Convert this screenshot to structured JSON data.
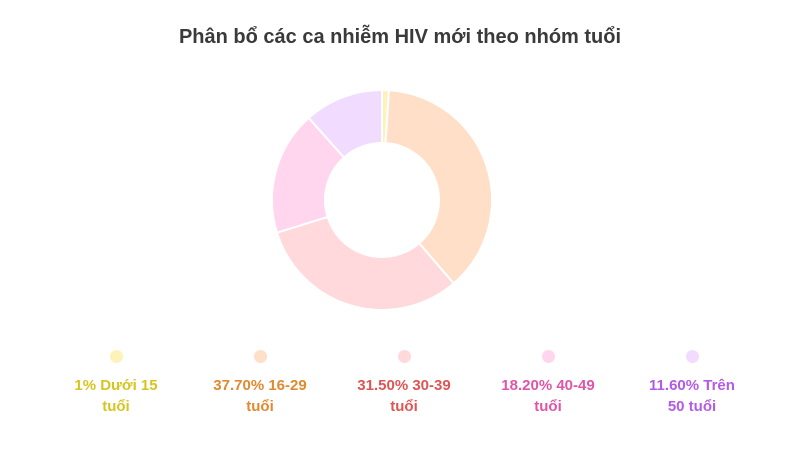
{
  "chart_data": {
    "type": "pie",
    "variant": "donut",
    "title": "Phân bổ các ca nhiễm HIV mới theo nhóm tuổi",
    "legend_position": "bottom",
    "slices": [
      {
        "label": "Dưới 15 tuổi",
        "value": 1,
        "legend_text": "1% Dưới 15\ntuổi",
        "fill": "#fdf3b8",
        "text_color": "#d6c51e",
        "dot_color": "#fdf3b8"
      },
      {
        "label": "16-29 tuổi",
        "value": 37.7,
        "legend_text": "37.70% 16-29\ntuổi",
        "fill": "#ffdfc8",
        "text_color": "#e0892e",
        "dot_color": "#ffdfc8"
      },
      {
        "label": "30-39 tuổi",
        "value": 31.5,
        "legend_text": "31.50% 30-39\ntuổi",
        "fill": "#ffd9dc",
        "text_color": "#dd5555",
        "dot_color": "#ffd9dc"
      },
      {
        "label": "40-49 tuổi",
        "value": 18.2,
        "legend_text": "18.20% 40-49\ntuổi",
        "fill": "#ffd6ee",
        "text_color": "#e055a8",
        "dot_color": "#ffd6ee"
      },
      {
        "label": "Trên 50 tuổi",
        "value": 11.6,
        "legend_text": "11.60% Trên\n50 tuổi",
        "fill": "#f1dcff",
        "text_color": "#b35ae8",
        "dot_color": "#f1dcff"
      }
    ]
  }
}
